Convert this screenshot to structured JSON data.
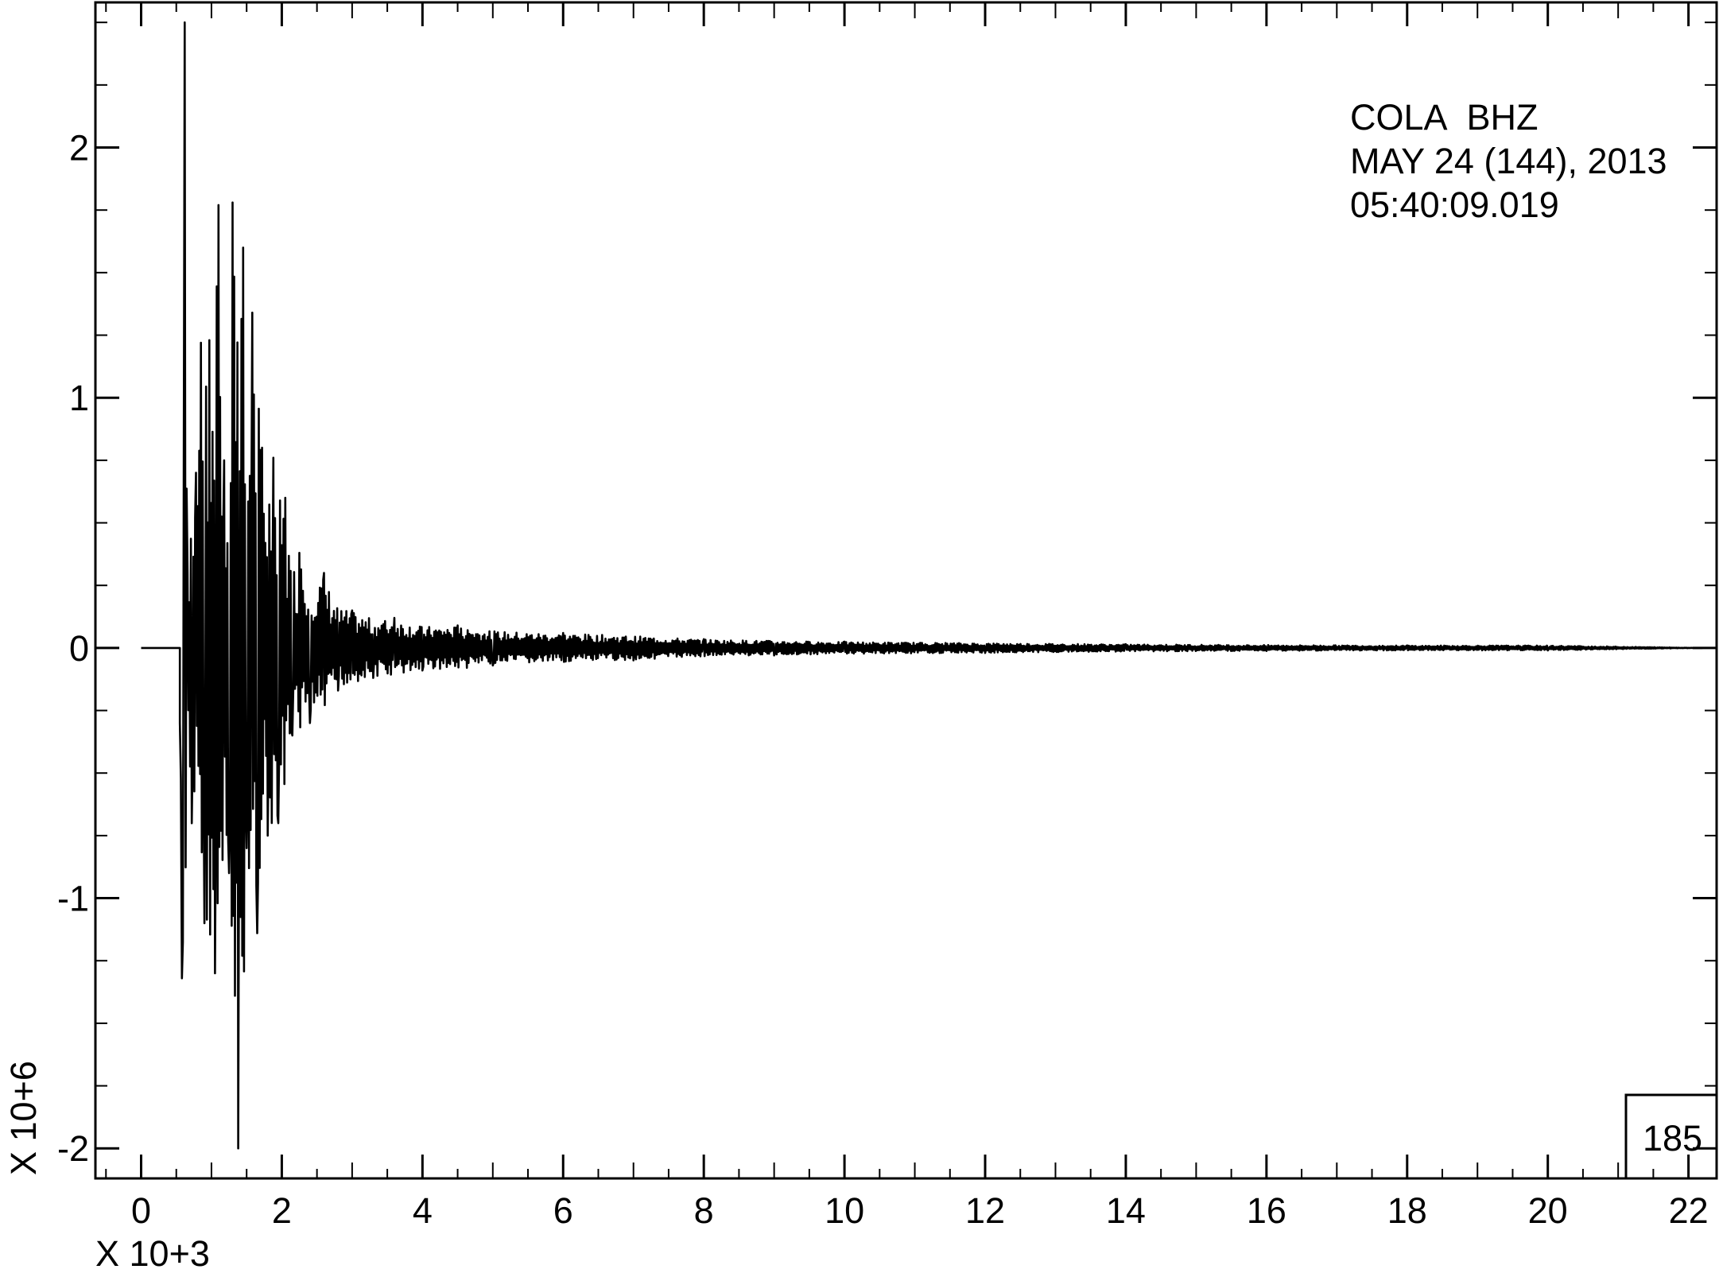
{
  "chart_data": {
    "type": "line",
    "title": "",
    "station": "COLA",
    "channel": "BHZ",
    "date_line": "MAY 24 (144), 2013",
    "time_line": "05:40:09.019",
    "x_multiplier": "X 10+3",
    "y_multiplier": "X 10+6",
    "box_label": "185",
    "xlim": [
      -0.65,
      22.4
    ],
    "ylim": [
      -2.12,
      2.58
    ],
    "x_ticks": [
      0,
      2,
      4,
      6,
      8,
      10,
      12,
      14,
      16,
      18,
      20,
      22
    ],
    "x_tick_labels": [
      "0",
      "2",
      "4",
      "6",
      "8",
      "10",
      "12",
      "14",
      "16",
      "18",
      "20",
      "22"
    ],
    "y_ticks": [
      -2,
      -1,
      0,
      1,
      2
    ],
    "y_tick_labels": [
      "-2",
      "-1",
      "0",
      "1",
      "2"
    ],
    "pre_event_start": 0.0,
    "event_onset": 0.55,
    "trace_end": 22.2,
    "series": [
      {
        "peaks_x": [
          0.55,
          0.58,
          0.62,
          0.66,
          0.72,
          0.78,
          0.85,
          0.9,
          0.97,
          1.05,
          1.1,
          1.18,
          1.25,
          1.3,
          1.38,
          1.45,
          1.5,
          1.58,
          1.65,
          1.72,
          1.8,
          1.88,
          1.95,
          2.05,
          2.15,
          2.25,
          2.4,
          2.6,
          2.8,
          3.0,
          3.3,
          3.6,
          4.0,
          4.5,
          5.0,
          6.0,
          7.0,
          8.0,
          9.0,
          10.0,
          12.0,
          14.0,
          16.0,
          18.0,
          20.0,
          22.2
        ],
        "peaks_y": [
          -0.3,
          -1.32,
          2.5,
          0.3,
          -0.7,
          0.7,
          1.22,
          -1.1,
          1.23,
          -1.3,
          1.77,
          0.75,
          -0.9,
          1.78,
          -2.0,
          1.6,
          -0.8,
          1.34,
          -1.14,
          0.8,
          -0.75,
          0.76,
          -0.7,
          0.6,
          -0.35,
          0.38,
          -0.3,
          0.3,
          -0.17,
          0.15,
          -0.12,
          0.12,
          -0.09,
          0.09,
          -0.07,
          0.06,
          -0.05,
          0.035,
          -0.03,
          0.025,
          -0.02,
          0.015,
          -0.012,
          0.01,
          -0.01,
          0.0
        ]
      }
    ]
  }
}
